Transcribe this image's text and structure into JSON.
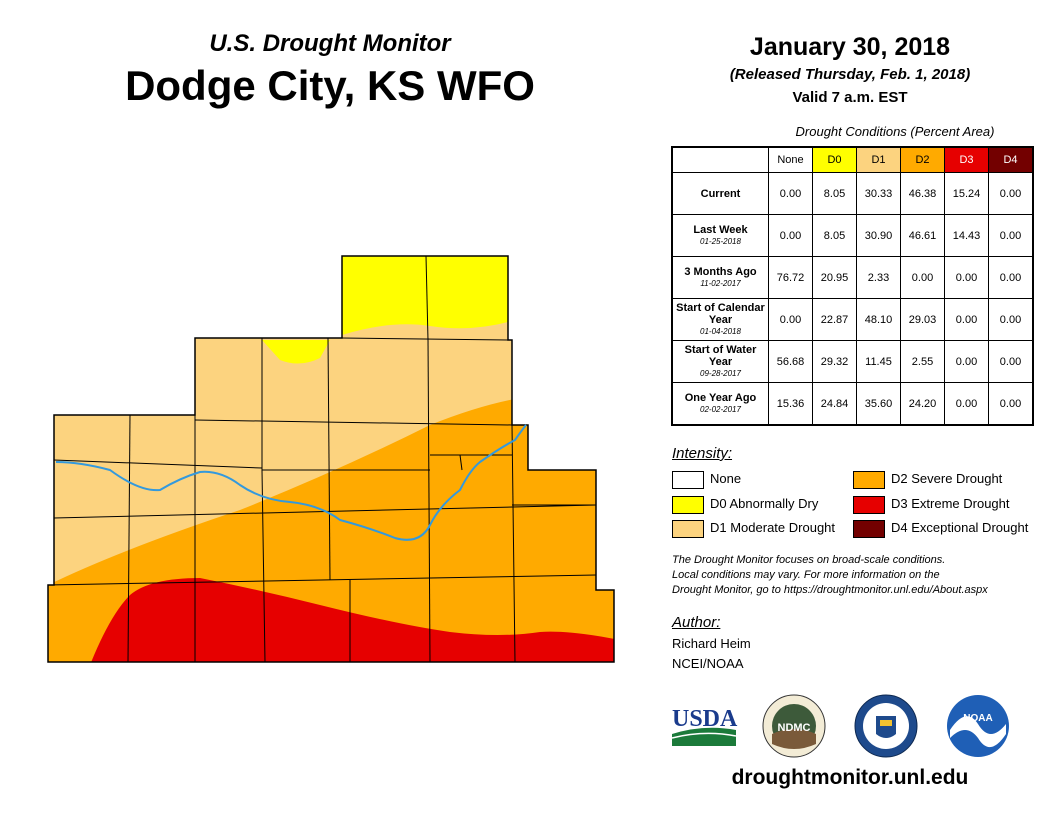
{
  "header": {
    "subtitle": "U.S. Drought Monitor",
    "title": "Dodge City, KS WFO",
    "date": "January 30, 2018",
    "released": "(Released Thursday, Feb. 1, 2018)",
    "valid": "Valid 7 a.m. EST"
  },
  "table": {
    "caption": "Drought Conditions (Percent Area)",
    "columns": [
      "None",
      "D0",
      "D1",
      "D2",
      "D3",
      "D4"
    ],
    "column_colors": [
      "#ffffff",
      "#ffff00",
      "#fcd37f",
      "#ffaa00",
      "#e60000",
      "#730000"
    ],
    "rows": [
      {
        "label": "Current",
        "date": "",
        "values": [
          "0.00",
          "8.05",
          "30.33",
          "46.38",
          "15.24",
          "0.00"
        ]
      },
      {
        "label": "Last Week",
        "date": "01-25-2018",
        "values": [
          "0.00",
          "8.05",
          "30.90",
          "46.61",
          "14.43",
          "0.00"
        ]
      },
      {
        "label": "3 Months Ago",
        "date": "11-02-2017",
        "values": [
          "76.72",
          "20.95",
          "2.33",
          "0.00",
          "0.00",
          "0.00"
        ]
      },
      {
        "label": "Start of Calendar Year",
        "date": "01-04-2018",
        "values": [
          "0.00",
          "22.87",
          "48.10",
          "29.03",
          "0.00",
          "0.00"
        ]
      },
      {
        "label": "Start of Water Year",
        "date": "09-28-2017",
        "values": [
          "56.68",
          "29.32",
          "11.45",
          "2.55",
          "0.00",
          "0.00"
        ]
      },
      {
        "label": "One Year Ago",
        "date": "02-02-2017",
        "values": [
          "15.36",
          "24.84",
          "35.60",
          "24.20",
          "0.00",
          "0.00"
        ]
      }
    ]
  },
  "legend": {
    "title": "Intensity:",
    "items": [
      {
        "label": "None",
        "color": "#ffffff"
      },
      {
        "label": "D0 Abnormally Dry",
        "color": "#ffff00"
      },
      {
        "label": "D1 Moderate Drought",
        "color": "#fcd37f"
      },
      {
        "label": "D2 Severe Drought",
        "color": "#ffaa00"
      },
      {
        "label": "D3 Extreme Drought",
        "color": "#e60000"
      },
      {
        "label": "D4 Exceptional Drought",
        "color": "#730000"
      }
    ]
  },
  "note": {
    "line1": "The Drought Monitor focuses on broad-scale conditions.",
    "line2": "Local conditions may vary. For more information on the",
    "line3": "Drought Monitor, go to https://droughtmonitor.unl.edu/About.aspx"
  },
  "author": {
    "title": "Author:",
    "name": "Richard Heim",
    "org": "NCEI/NOAA"
  },
  "logos": {
    "usda": "USDA",
    "ndmc": "NDMC",
    "noaa": "NOAA"
  },
  "website": "droughtmonitor.unl.edu",
  "colors": {
    "d0": "#ffff00",
    "d1": "#fcd37f",
    "d2": "#ffaa00",
    "d3": "#e60000",
    "river": "#3399dd"
  }
}
